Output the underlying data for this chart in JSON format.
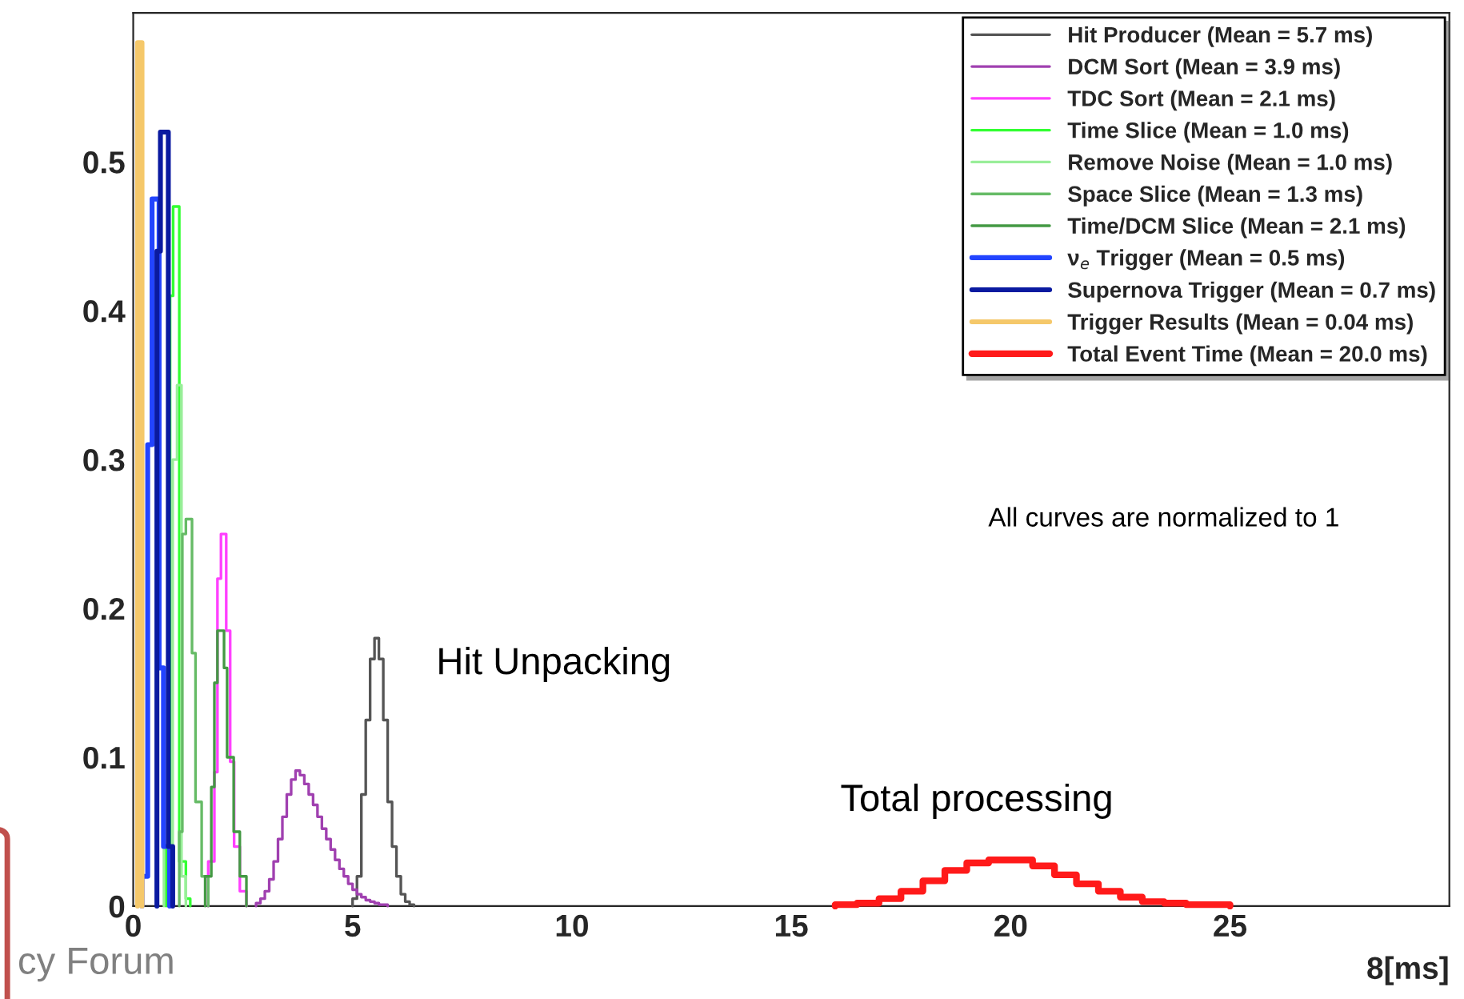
{
  "chart_data": {
    "type": "step",
    "xlabel": "8[ms]",
    "xlim": [
      0,
      30
    ],
    "xticks": [
      0,
      5,
      10,
      15,
      20,
      25
    ],
    "ylim": [
      0,
      0.6
    ],
    "yticks": [
      0,
      0.1,
      0.2,
      0.3,
      0.4,
      0.5
    ],
    "legend": "top right",
    "grid": false,
    "annotations": [
      "All curves are normalized to 1",
      "Hit Unpacking",
      "Total processing",
      "cy Forum"
    ],
    "series": [
      {
        "name": "Hit Producer (Mean = 5.7 ms)",
        "color": "#555555",
        "x": [
          5.0,
          5.0,
          5.1,
          5.2,
          5.3,
          5.4,
          5.5,
          5.6,
          5.7,
          5.8,
          5.9,
          6.0,
          6.1,
          6.2,
          6.3,
          6.4
        ],
        "values": [
          0,
          0.005,
          0.02,
          0.075,
          0.125,
          0.166,
          0.18,
          0.166,
          0.125,
          0.07,
          0.04,
          0.02,
          0.008,
          0.003,
          0.001,
          0
        ]
      },
      {
        "name": "DCM Sort (Mean = 3.9 ms)",
        "color": "#a040b0",
        "x": [
          2.8,
          2.8,
          2.9,
          3.0,
          3.1,
          3.2,
          3.3,
          3.4,
          3.5,
          3.6,
          3.7,
          3.8,
          3.9,
          4.0,
          4.1,
          4.2,
          4.3,
          4.4,
          4.5,
          4.6,
          4.7,
          4.8,
          4.9,
          5.0,
          5.1,
          5.2,
          5.3,
          5.4,
          5.5,
          5.6,
          5.7,
          5.8
        ],
        "values": [
          0,
          0.002,
          0.005,
          0.01,
          0.018,
          0.03,
          0.045,
          0.06,
          0.075,
          0.085,
          0.091,
          0.088,
          0.082,
          0.075,
          0.068,
          0.06,
          0.052,
          0.045,
          0.038,
          0.031,
          0.025,
          0.02,
          0.015,
          0.011,
          0.008,
          0.006,
          0.004,
          0.003,
          0.002,
          0.001,
          0.001,
          0
        ]
      },
      {
        "name": "TDC Sort (Mean = 2.1 ms)",
        "color": "#ff40ff",
        "x": [
          1.71,
          1.71,
          1.85,
          1.92,
          2.0,
          2.12,
          2.21,
          2.3,
          2.43,
          2.58
        ],
        "values": [
          0,
          0.03,
          0.09,
          0.22,
          0.25,
          0.185,
          0.097,
          0.04,
          0.01,
          0
        ]
      },
      {
        "name": "Time Slice (Mean = 1.0 ms)",
        "color": "#33ff33",
        "x": [
          0.75,
          0.75,
          0.84,
          0.91,
          1.05,
          1.2,
          1.3
        ],
        "values": [
          0,
          0.04,
          0.41,
          0.47,
          0.03,
          0.005,
          0
        ]
      },
      {
        "name": "Remove Noise (Mean = 1.0 ms)",
        "color": "#99ee99",
        "x": [
          0.7,
          0.7,
          0.8,
          0.9,
          1.0,
          1.1,
          1.2
        ],
        "values": [
          0,
          0.04,
          0.04,
          0.3,
          0.35,
          0.02,
          0
        ]
      },
      {
        "name": "Space Slice (Mean = 1.3 ms)",
        "color": "#66bb66",
        "x": [
          1.05,
          1.05,
          1.12,
          1.2,
          1.34,
          1.42,
          1.56,
          1.71
        ],
        "values": [
          0,
          0.05,
          0.25,
          0.26,
          0.17,
          0.07,
          0.02,
          0
        ]
      },
      {
        "name": "Time/DCM Slice (Mean = 2.1 ms)",
        "color": "#449944",
        "x": [
          1.64,
          1.64,
          1.78,
          1.85,
          1.92,
          2.07,
          2.14,
          2.29,
          2.43,
          2.58
        ],
        "values": [
          0,
          0.02,
          0.08,
          0.15,
          0.185,
          0.16,
          0.1,
          0.05,
          0.02,
          0
        ]
      },
      {
        "name": "ν$_{e}$ Trigger (Mean = 0.5 ms)",
        "color": "#2244ff",
        "x": [
          0.2,
          0.2,
          0.33,
          0.43,
          0.59,
          0.69,
          0.83
        ],
        "values": [
          0,
          0.02,
          0.31,
          0.475,
          0.16,
          0.04,
          0
        ]
      },
      {
        "name": "Supernova Trigger (Mean = 0.7 ms)",
        "color": "#0a1aa0",
        "x": [
          0.54,
          0.54,
          0.62,
          0.8,
          0.9
        ],
        "values": [
          0,
          0.44,
          0.52,
          0.04,
          0
        ]
      },
      {
        "name": "Trigger Results (Mean = 0.04 ms)",
        "color": "#f5c86a",
        "x": [
          0.1,
          0.1,
          0.2
        ],
        "values": [
          0,
          0.58,
          0
        ]
      },
      {
        "name": "Total Event Time (Mean = 20.0 ms)",
        "color": "#ff1a1a",
        "x": [
          16,
          16,
          16.5,
          17,
          17.5,
          18,
          18.5,
          19,
          19.5,
          20,
          20.5,
          21,
          21.5,
          22,
          22.5,
          23,
          23.5,
          24,
          24.5,
          25
        ],
        "values": [
          0,
          0.001,
          0.002,
          0.005,
          0.01,
          0.017,
          0.024,
          0.029,
          0.031,
          0.031,
          0.027,
          0.021,
          0.015,
          0.01,
          0.006,
          0.003,
          0.002,
          0.001,
          0.001,
          0
        ]
      }
    ]
  }
}
